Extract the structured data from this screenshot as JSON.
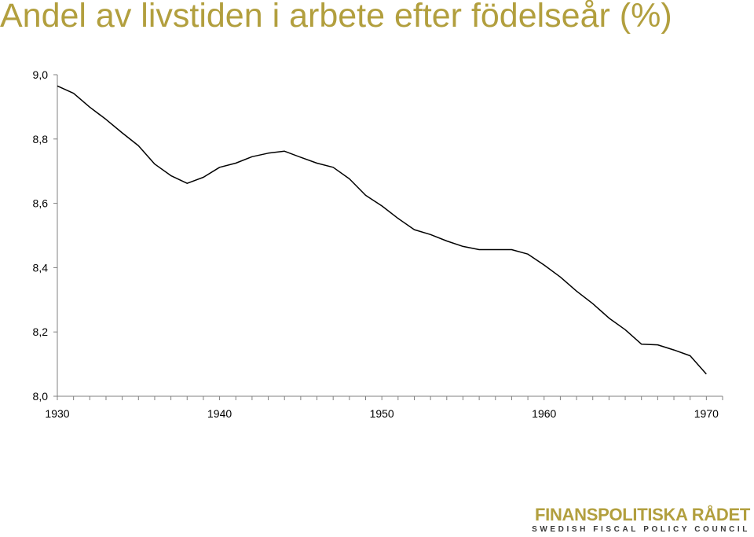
{
  "colors": {
    "title": "#b29f3e",
    "line": "#000000",
    "axis": "#808080",
    "brand": "#b29f3e",
    "brand_sub": "#3a3a3a"
  },
  "logo": {
    "name": "FINANSPOLITISKA RÅDET",
    "subtitle": "SWEDISH FISCAL POLICY COUNCIL"
  },
  "chart_data": {
    "type": "line",
    "title": "Andel av livstiden i arbete efter födelseår (%)",
    "xlabel": "",
    "ylabel": "",
    "xlim": [
      1930,
      1971
    ],
    "ylim": [
      8.0,
      9.0
    ],
    "x_ticks": [
      "1930",
      "1940",
      "1950",
      "1960",
      "1970"
    ],
    "y_ticks": [
      "8,0",
      "8,2",
      "8,4",
      "8,6",
      "8,8",
      "9,0"
    ],
    "grid": false,
    "legend": "none",
    "series": [
      {
        "x": [
          1930,
          1931,
          1932,
          1933,
          1934,
          1935,
          1936,
          1937,
          1938,
          1939,
          1940,
          1941,
          1942,
          1943,
          1944,
          1945,
          1946,
          1947,
          1948,
          1949,
          1950,
          1951,
          1952,
          1953,
          1954,
          1955,
          1956,
          1957,
          1958,
          1959,
          1960,
          1961,
          1962,
          1963,
          1964,
          1965,
          1966,
          1967,
          1968,
          1969,
          1970
        ],
        "values": [
          8.965,
          8.942,
          8.899,
          8.861,
          8.819,
          8.779,
          8.722,
          8.686,
          8.662,
          8.681,
          8.712,
          8.725,
          8.745,
          8.756,
          8.762,
          8.743,
          8.725,
          8.712,
          8.676,
          8.625,
          8.592,
          8.553,
          8.518,
          8.503,
          8.483,
          8.466,
          8.456,
          8.456,
          8.456,
          8.442,
          8.408,
          8.371,
          8.327,
          8.288,
          8.243,
          8.207,
          8.162,
          8.16,
          8.144,
          8.126,
          8.069
        ]
      }
    ]
  }
}
